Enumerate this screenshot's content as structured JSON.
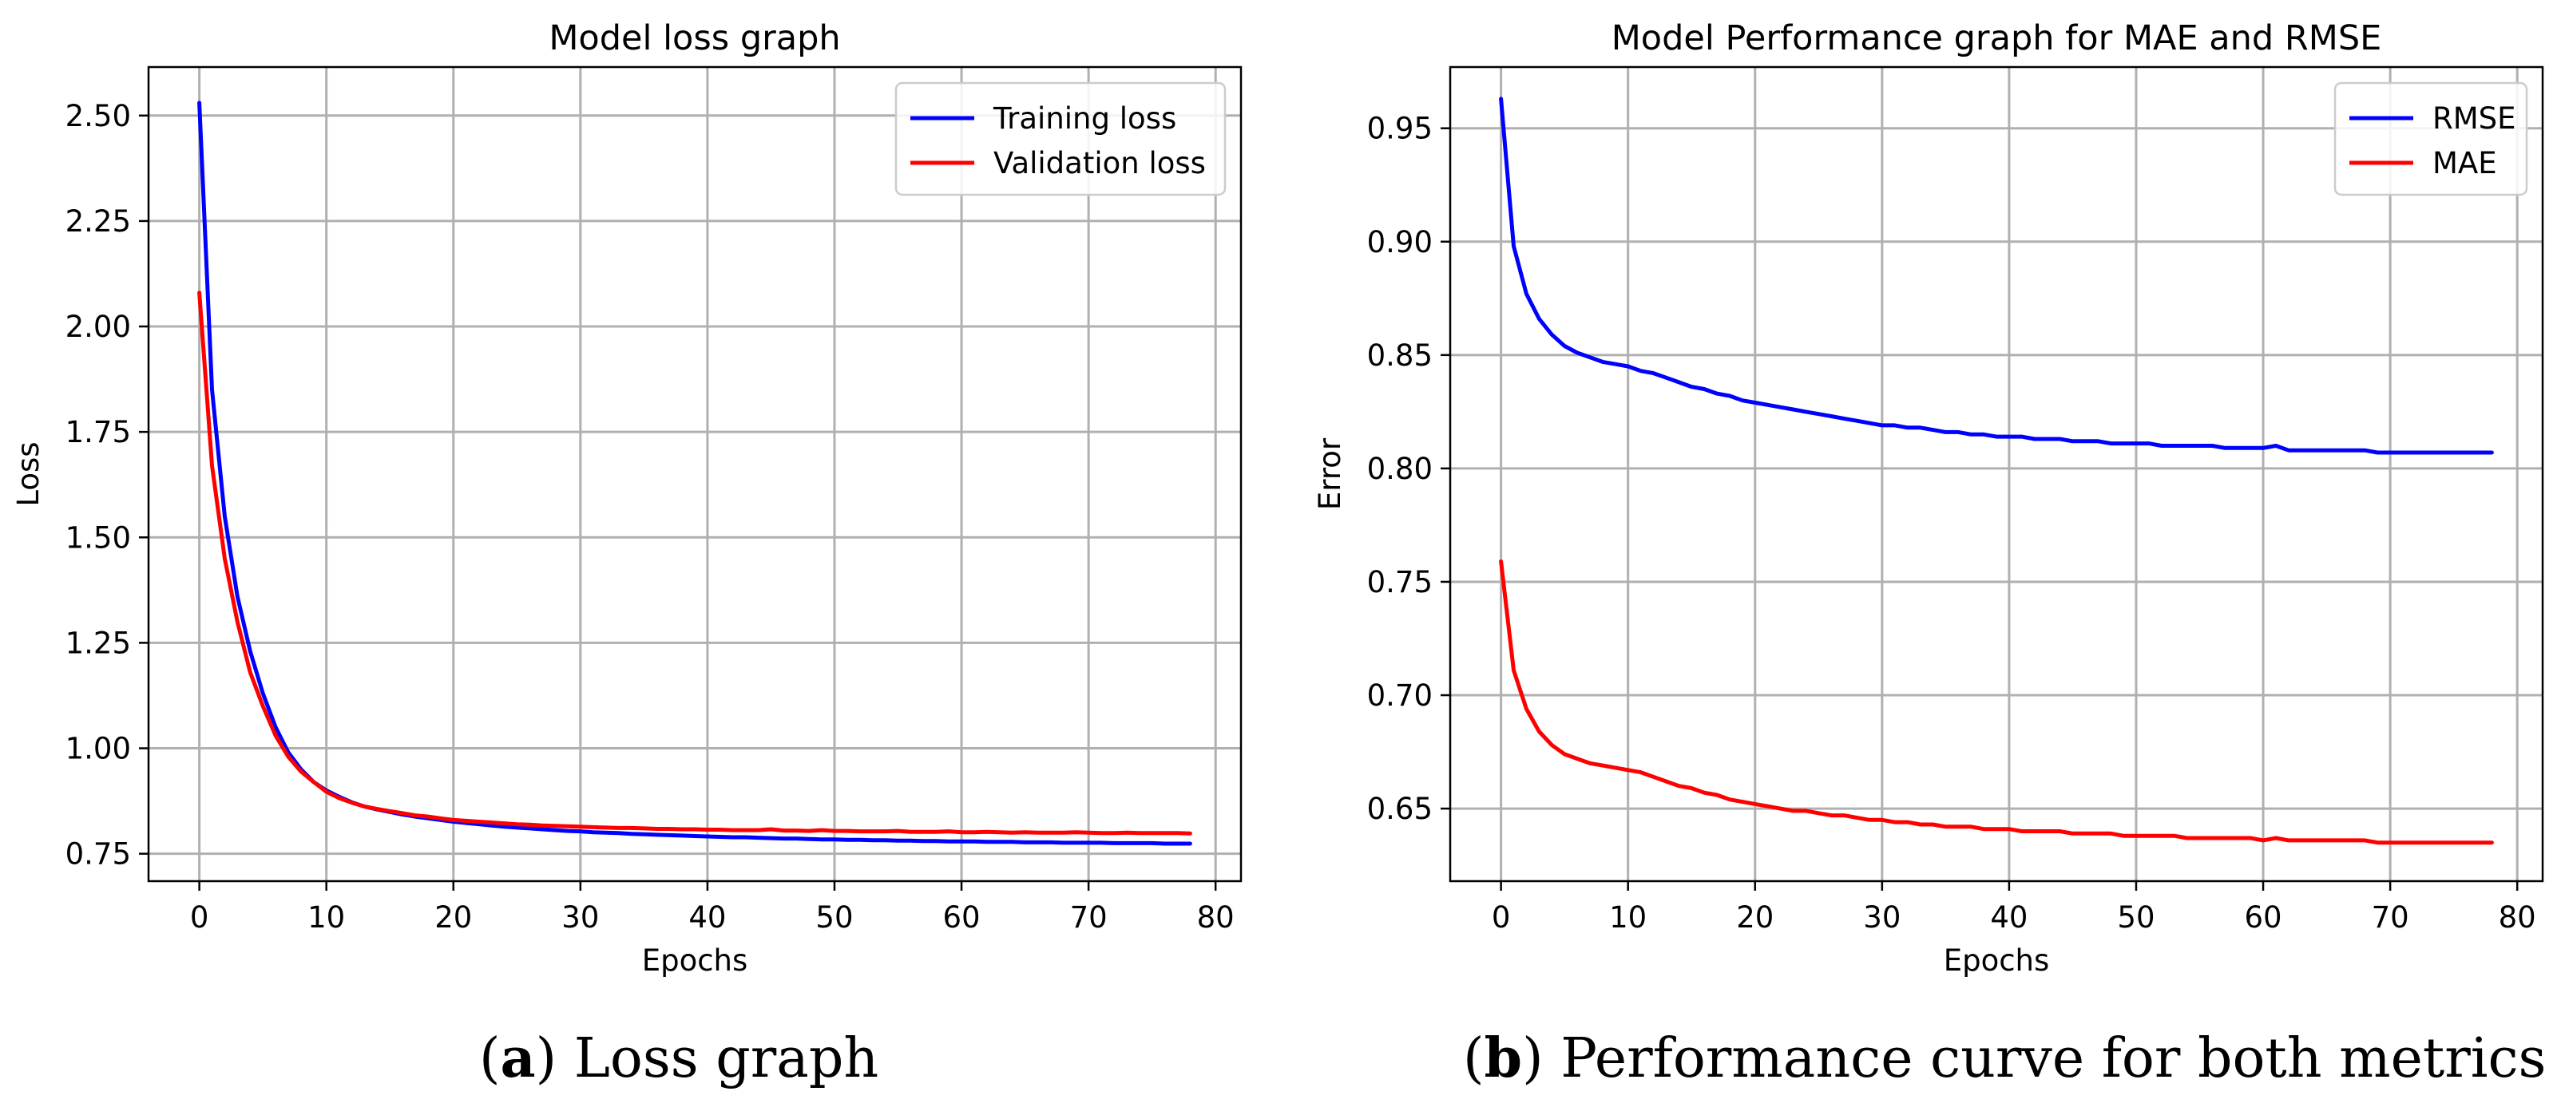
{
  "chart_data": [
    {
      "type": "line",
      "title": "Model loss graph",
      "xlabel": "Epochs",
      "ylabel": "Loss",
      "xlim": [
        -4,
        82
      ],
      "ylim": [
        0.685,
        2.615
      ],
      "xticks": [
        0,
        10,
        20,
        30,
        40,
        50,
        60,
        70,
        80
      ],
      "yticks": [
        0.75,
        1.0,
        1.25,
        1.5,
        1.75,
        2.0,
        2.25,
        2.5
      ],
      "ytick_labels": [
        "0.75",
        "1.00",
        "1.25",
        "1.50",
        "1.75",
        "2.00",
        "2.25",
        "2.50"
      ],
      "grid": true,
      "legend": "top-right",
      "series": [
        {
          "name": "Training loss",
          "color": "#0000ff",
          "values": [
            2.53,
            1.85,
            1.55,
            1.36,
            1.23,
            1.13,
            1.05,
            0.99,
            0.95,
            0.92,
            0.9,
            0.885,
            0.872,
            0.862,
            0.855,
            0.849,
            0.843,
            0.838,
            0.834,
            0.83,
            0.826,
            0.823,
            0.82,
            0.817,
            0.814,
            0.812,
            0.81,
            0.808,
            0.806,
            0.804,
            0.803,
            0.801,
            0.8,
            0.799,
            0.797,
            0.796,
            0.795,
            0.794,
            0.793,
            0.792,
            0.791,
            0.79,
            0.789,
            0.789,
            0.788,
            0.787,
            0.786,
            0.786,
            0.785,
            0.784,
            0.784,
            0.783,
            0.783,
            0.782,
            0.782,
            0.781,
            0.781,
            0.78,
            0.78,
            0.779,
            0.779,
            0.779,
            0.778,
            0.778,
            0.778,
            0.777,
            0.777,
            0.777,
            0.776,
            0.776,
            0.776,
            0.776,
            0.775,
            0.775,
            0.775,
            0.775,
            0.774,
            0.774,
            0.774
          ]
        },
        {
          "name": "Validation loss",
          "color": "#ff0000",
          "values": [
            2.08,
            1.67,
            1.45,
            1.3,
            1.18,
            1.1,
            1.03,
            0.98,
            0.945,
            0.92,
            0.897,
            0.882,
            0.871,
            0.862,
            0.856,
            0.851,
            0.846,
            0.841,
            0.838,
            0.834,
            0.83,
            0.828,
            0.826,
            0.824,
            0.822,
            0.82,
            0.819,
            0.817,
            0.816,
            0.815,
            0.814,
            0.813,
            0.812,
            0.811,
            0.811,
            0.81,
            0.809,
            0.809,
            0.808,
            0.808,
            0.807,
            0.807,
            0.806,
            0.806,
            0.806,
            0.808,
            0.805,
            0.805,
            0.804,
            0.806,
            0.804,
            0.804,
            0.803,
            0.803,
            0.803,
            0.804,
            0.802,
            0.802,
            0.802,
            0.803,
            0.801,
            0.801,
            0.802,
            0.801,
            0.8,
            0.801,
            0.8,
            0.8,
            0.8,
            0.801,
            0.8,
            0.799,
            0.799,
            0.8,
            0.799,
            0.799,
            0.799,
            0.799,
            0.798
          ]
        }
      ]
    },
    {
      "type": "line",
      "title": "Model Performance graph for MAE and RMSE",
      "xlabel": "Epochs",
      "ylabel": "Error",
      "xlim": [
        -4,
        82
      ],
      "ylim": [
        0.618,
        0.977
      ],
      "xticks": [
        0,
        10,
        20,
        30,
        40,
        50,
        60,
        70,
        80
      ],
      "yticks": [
        0.65,
        0.7,
        0.75,
        0.8,
        0.85,
        0.9,
        0.95
      ],
      "ytick_labels": [
        "0.65",
        "0.70",
        "0.75",
        "0.80",
        "0.85",
        "0.90",
        "0.95"
      ],
      "grid": true,
      "legend": "top-right",
      "series": [
        {
          "name": "RMSE",
          "color": "#0000ff",
          "values": [
            0.963,
            0.898,
            0.877,
            0.866,
            0.859,
            0.854,
            0.851,
            0.849,
            0.847,
            0.846,
            0.845,
            0.843,
            0.842,
            0.84,
            0.838,
            0.836,
            0.835,
            0.833,
            0.832,
            0.83,
            0.829,
            0.828,
            0.827,
            0.826,
            0.825,
            0.824,
            0.823,
            0.822,
            0.821,
            0.82,
            0.819,
            0.819,
            0.818,
            0.818,
            0.817,
            0.816,
            0.816,
            0.815,
            0.815,
            0.814,
            0.814,
            0.814,
            0.813,
            0.813,
            0.813,
            0.812,
            0.812,
            0.812,
            0.811,
            0.811,
            0.811,
            0.811,
            0.81,
            0.81,
            0.81,
            0.81,
            0.81,
            0.809,
            0.809,
            0.809,
            0.809,
            0.81,
            0.808,
            0.808,
            0.808,
            0.808,
            0.808,
            0.808,
            0.808,
            0.807,
            0.807,
            0.807,
            0.807,
            0.807,
            0.807,
            0.807,
            0.807,
            0.807,
            0.807
          ]
        },
        {
          "name": "MAE",
          "color": "#ff0000",
          "values": [
            0.759,
            0.711,
            0.694,
            0.684,
            0.678,
            0.674,
            0.672,
            0.67,
            0.669,
            0.668,
            0.667,
            0.666,
            0.664,
            0.662,
            0.66,
            0.659,
            0.657,
            0.656,
            0.654,
            0.653,
            0.652,
            0.651,
            0.65,
            0.649,
            0.649,
            0.648,
            0.647,
            0.647,
            0.646,
            0.645,
            0.645,
            0.644,
            0.644,
            0.643,
            0.643,
            0.642,
            0.642,
            0.642,
            0.641,
            0.641,
            0.641,
            0.64,
            0.64,
            0.64,
            0.64,
            0.639,
            0.639,
            0.639,
            0.639,
            0.638,
            0.638,
            0.638,
            0.638,
            0.638,
            0.637,
            0.637,
            0.637,
            0.637,
            0.637,
            0.637,
            0.636,
            0.637,
            0.636,
            0.636,
            0.636,
            0.636,
            0.636,
            0.636,
            0.636,
            0.635,
            0.635,
            0.635,
            0.635,
            0.635,
            0.635,
            0.635,
            0.635,
            0.635,
            0.635
          ]
        }
      ]
    }
  ],
  "captions": {
    "a": {
      "label": "a",
      "text": "Loss graph"
    },
    "b": {
      "label": "b",
      "text": "Performance curve for both metrics"
    }
  }
}
